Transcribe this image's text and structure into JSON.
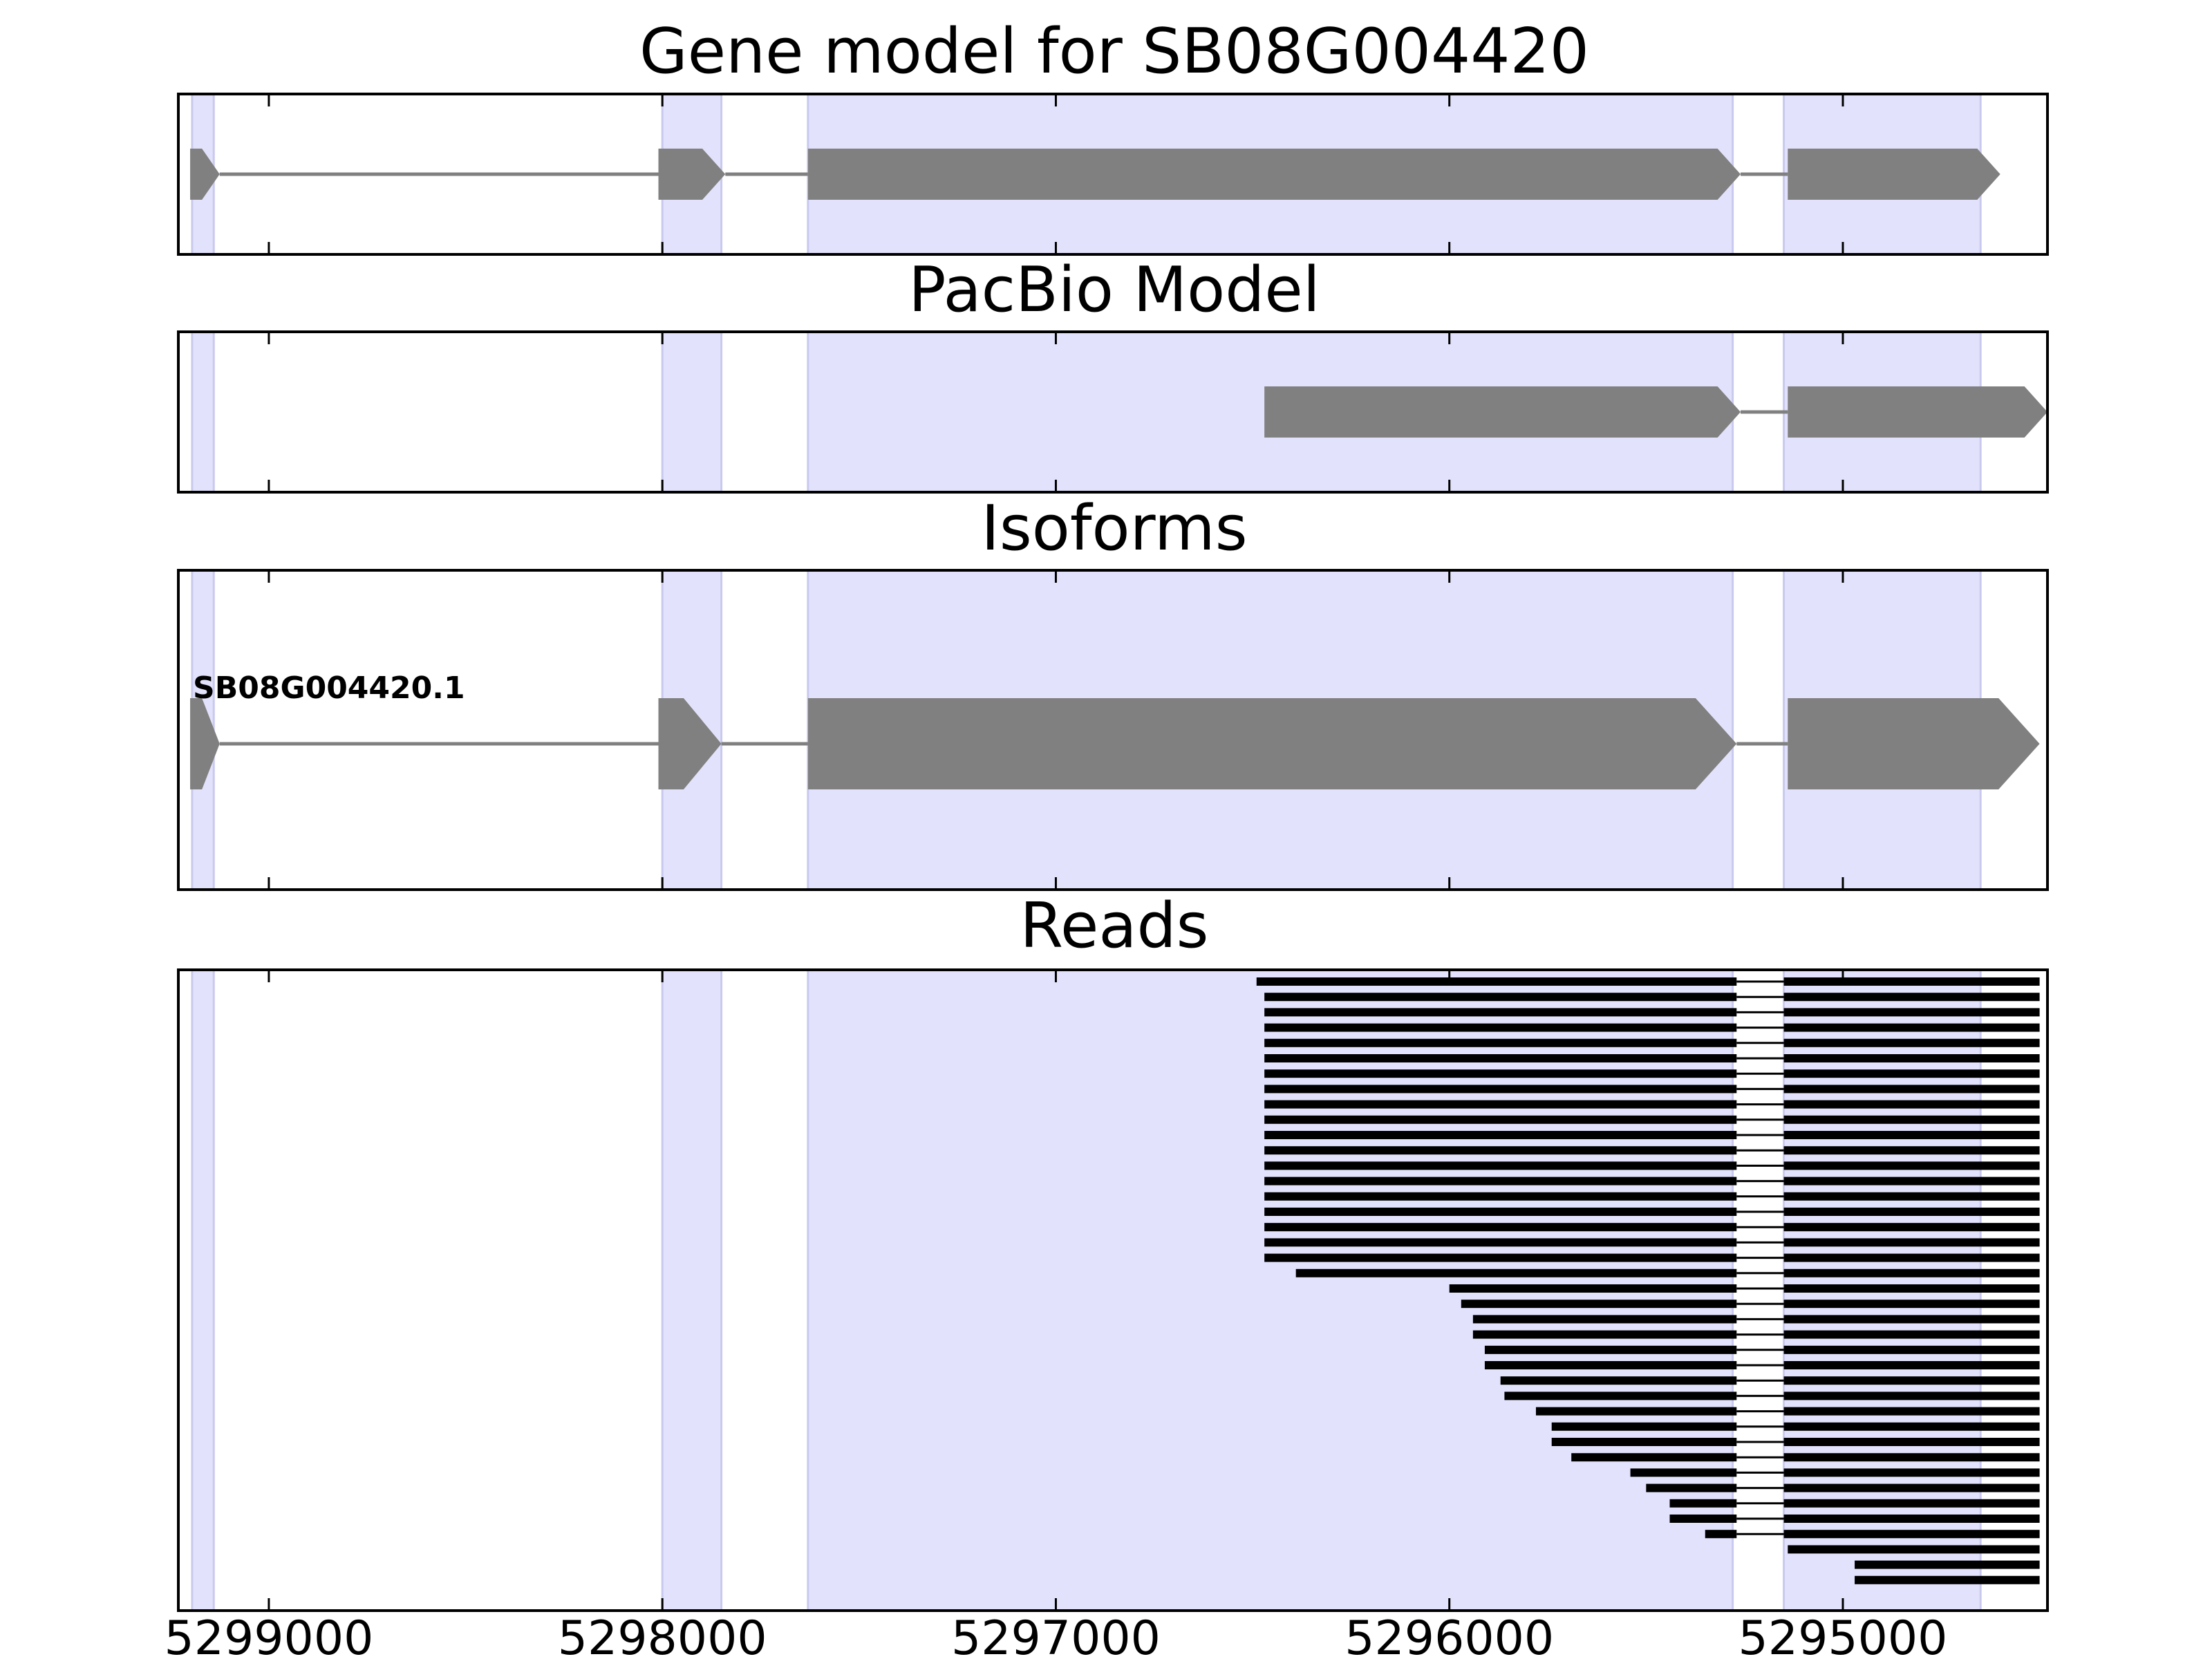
{
  "chart_data": {
    "type": "gene-track",
    "x_axis": {
      "ticks": [
        5299000,
        5298000,
        5297000,
        5296000,
        5295000
      ],
      "tick_labels": [
        "5299000",
        "5298000",
        "5297000",
        "5296000",
        "5295000"
      ],
      "range": [
        5299230,
        5294480
      ],
      "reversed": true
    },
    "highlight_regions": [
      [
        5299195,
        5299140
      ],
      [
        5298000,
        5297850
      ],
      [
        5297630,
        5295280
      ],
      [
        5295150,
        5294650
      ]
    ],
    "colors": {
      "highlight": "#e2e2fc",
      "highlight_edge": "#c9c9ee",
      "feature": "#808080",
      "intron": "#808080",
      "read": "#000000",
      "axes": "#000000"
    },
    "panels": [
      {
        "key": "gene_model",
        "title": "Gene model for SB08G004420",
        "features": [
          {
            "exons": [
              [
                5299200,
                5299125
              ],
              [
                5298010,
                5297840
              ],
              [
                5297630,
                5295260
              ],
              [
                5295140,
                5294600
              ]
            ]
          }
        ]
      },
      {
        "key": "pacbio_model",
        "title": "PacBio Model",
        "features": [
          {
            "exons": [
              [
                5296470,
                5295260
              ],
              [
                5295140,
                5294480
              ]
            ]
          }
        ]
      },
      {
        "key": "isoforms",
        "title": "Isoforms",
        "features": [
          {
            "label": "SB08G004420.1",
            "exons": [
              [
                5299200,
                5299125
              ],
              [
                5298010,
                5297850
              ],
              [
                5297630,
                5295270
              ],
              [
                5295140,
                5294500
              ]
            ]
          }
        ]
      },
      {
        "key": "reads",
        "title": "Reads",
        "reads": [
          [
            5296490,
            5294500
          ],
          [
            5296470,
            5294500
          ],
          [
            5296470,
            5294500
          ],
          [
            5296470,
            5294500
          ],
          [
            5296470,
            5294500
          ],
          [
            5296470,
            5294500
          ],
          [
            5296470,
            5294500
          ],
          [
            5296470,
            5294500
          ],
          [
            5296470,
            5294500
          ],
          [
            5296470,
            5294500
          ],
          [
            5296470,
            5294500
          ],
          [
            5296470,
            5294500
          ],
          [
            5296470,
            5294500
          ],
          [
            5296470,
            5294500
          ],
          [
            5296470,
            5294500
          ],
          [
            5296470,
            5294500
          ],
          [
            5296470,
            5294500
          ],
          [
            5296470,
            5294500
          ],
          [
            5296470,
            5294500
          ],
          [
            5296390,
            5294500
          ],
          [
            5296000,
            5294500
          ],
          [
            5295970,
            5294500
          ],
          [
            5295940,
            5294500
          ],
          [
            5295940,
            5294500
          ],
          [
            5295910,
            5294500
          ],
          [
            5295910,
            5294500
          ],
          [
            5295870,
            5294500
          ],
          [
            5295860,
            5294500
          ],
          [
            5295780,
            5294500
          ],
          [
            5295740,
            5294500
          ],
          [
            5295740,
            5294500
          ],
          [
            5295690,
            5294500
          ],
          [
            5295540,
            5294500
          ],
          [
            5295500,
            5294500
          ],
          [
            5295440,
            5294500
          ],
          [
            5295440,
            5294500
          ],
          [
            5295350,
            5294500
          ],
          [
            5295140,
            5294500
          ],
          [
            5294970,
            5294500
          ],
          [
            5294970,
            5294500
          ]
        ]
      }
    ]
  }
}
